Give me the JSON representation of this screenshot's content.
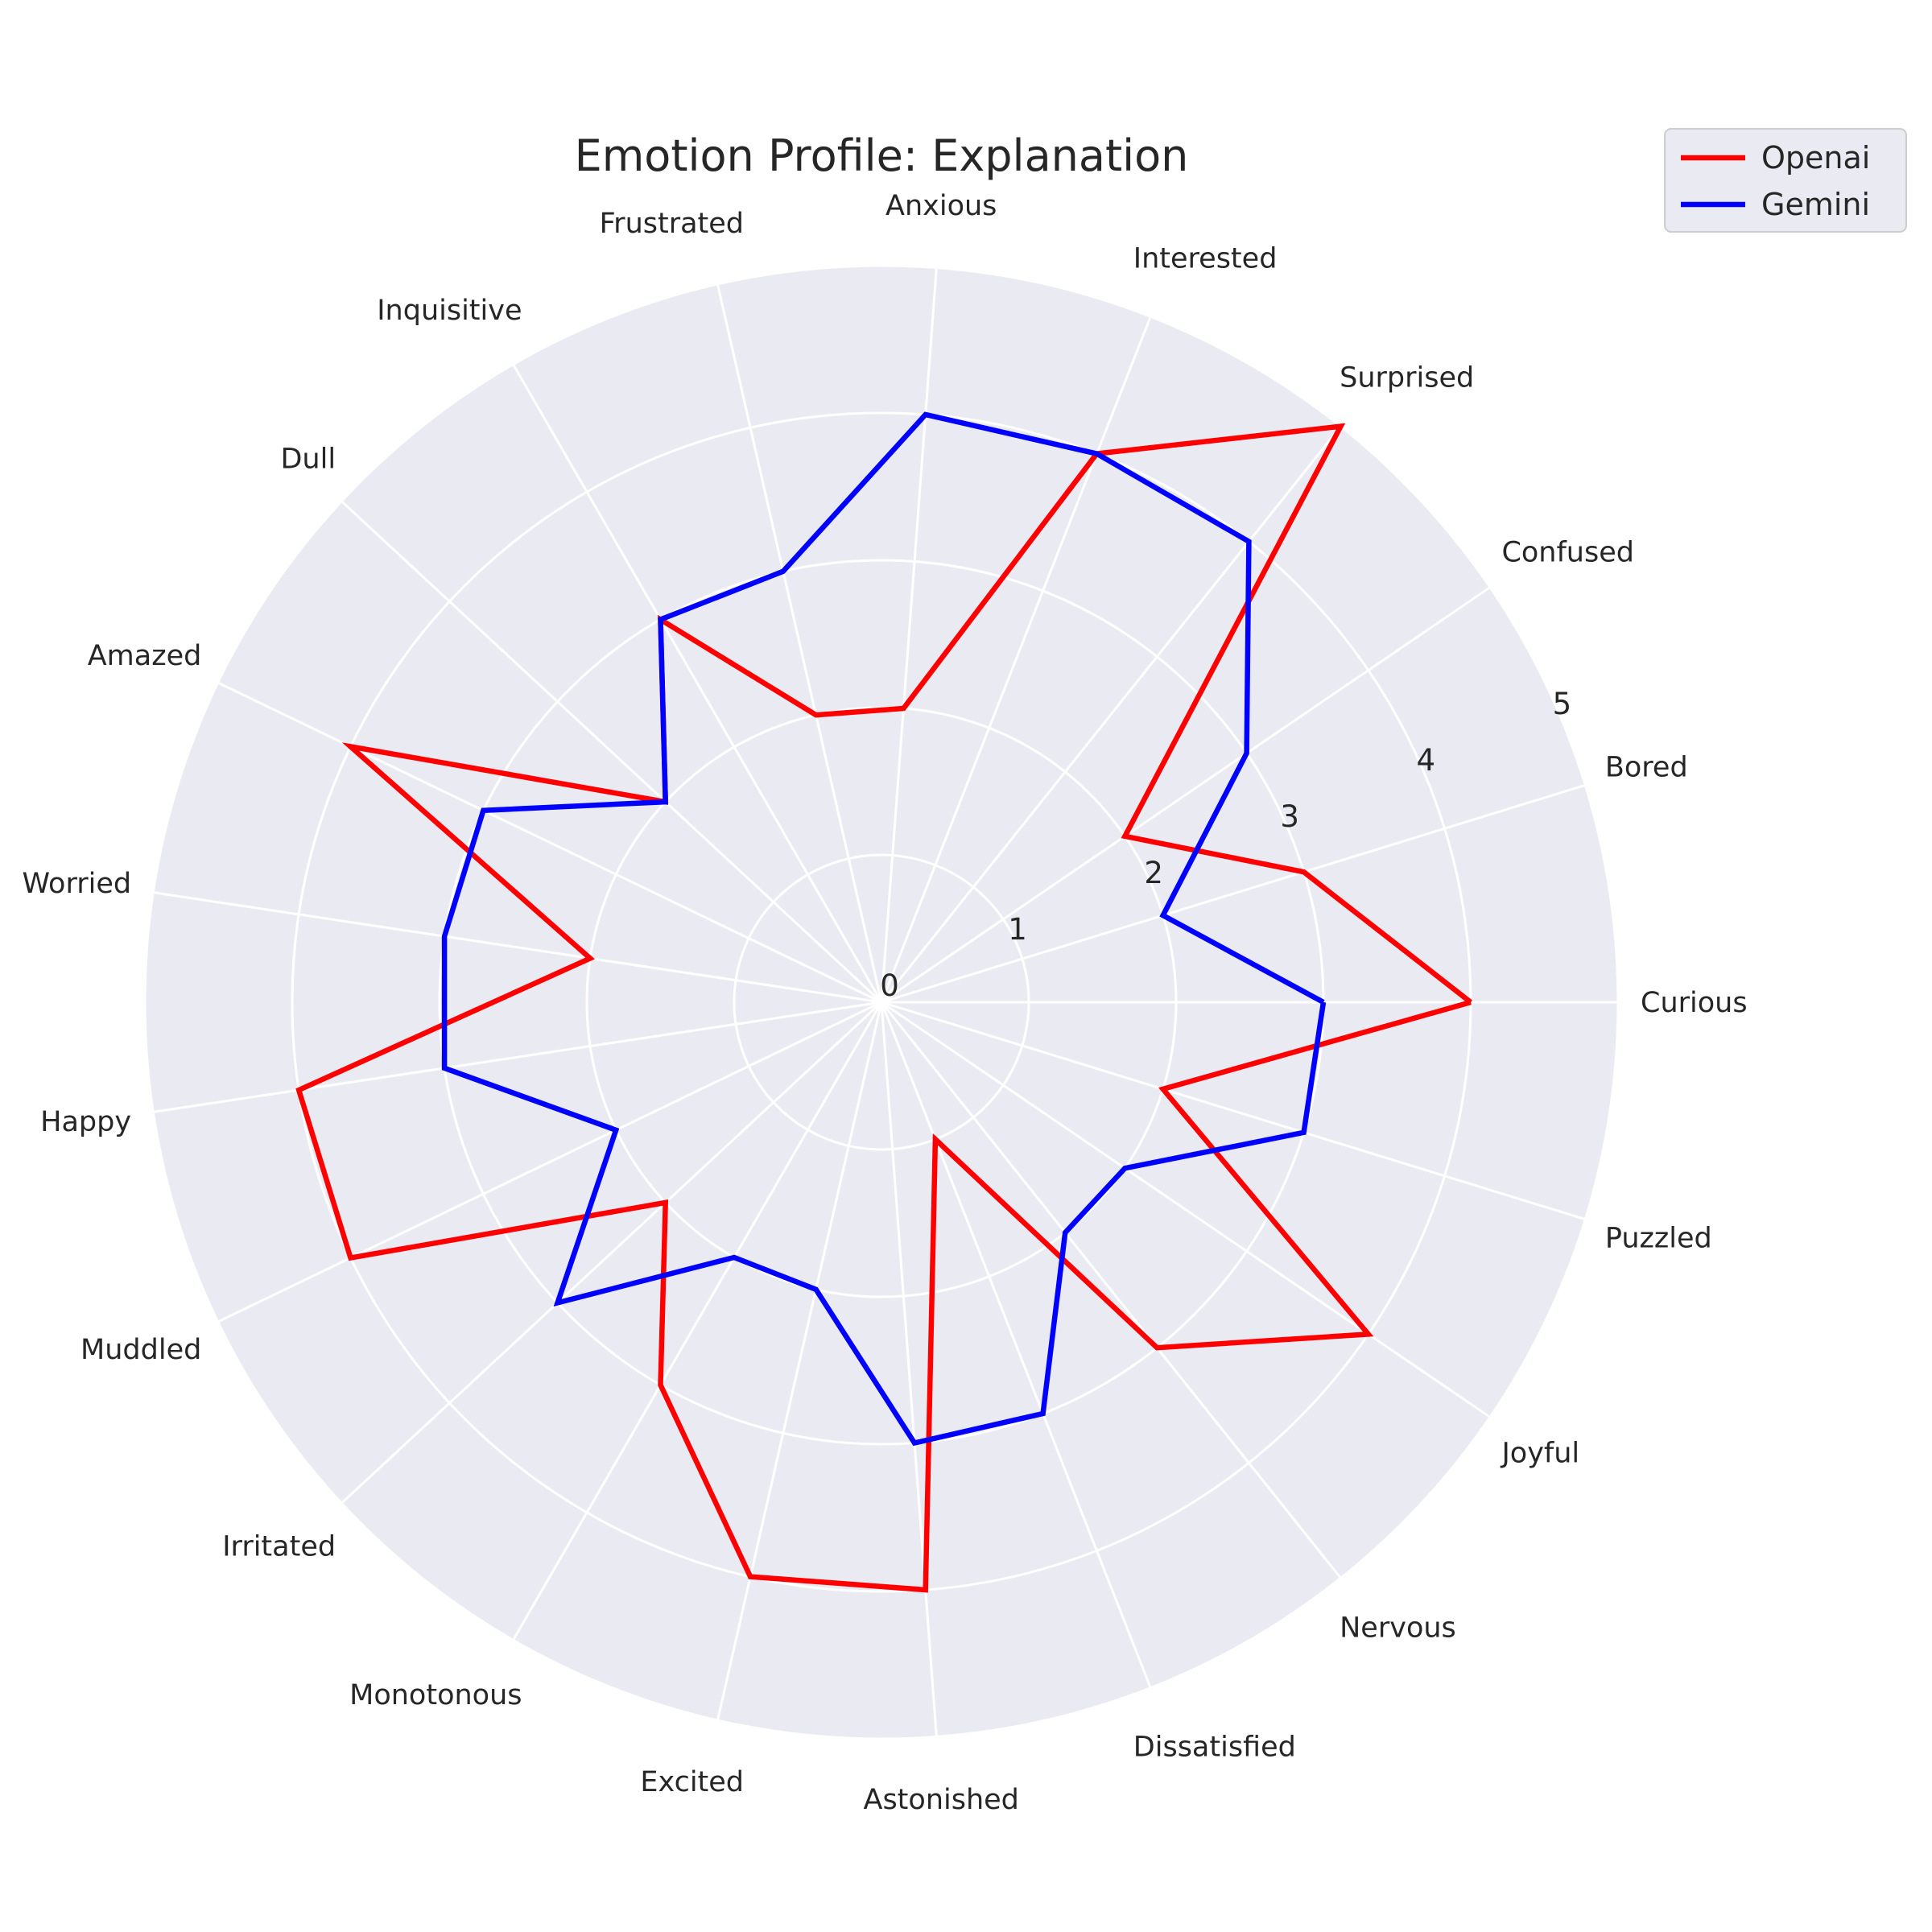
{
  "chart_data": {
    "type": "radar",
    "title": "Emotion Profile: Explanation",
    "categories": [
      "Curious",
      "Bored",
      "Confused",
      "Surprised",
      "Interested",
      "Anxious",
      "Frustrated",
      "Inquisitive",
      "Dull",
      "Amazed",
      "Worried",
      "Happy",
      "Muddled",
      "Irritated",
      "Monotonous",
      "Excited",
      "Astonished",
      "Dissatisfied",
      "Nervous",
      "Joyful",
      "Puzzled"
    ],
    "rlim": [
      0,
      5
    ],
    "rticks": [
      "0",
      "1",
      "2",
      "3",
      "4",
      "5"
    ],
    "series": [
      {
        "name": "Openai",
        "color": "#ff0000",
        "values": [
          4,
          3,
          2,
          5,
          4,
          2,
          2,
          3,
          2,
          4,
          2,
          4,
          4,
          2,
          3,
          4,
          4,
          1,
          3,
          4,
          2
        ]
      },
      {
        "name": "Gemini",
        "color": "#0000ff",
        "values": [
          3,
          2,
          3,
          4,
          4,
          4,
          3,
          3,
          2,
          3,
          3,
          3,
          2,
          3,
          2,
          2,
          3,
          3,
          2,
          2,
          3
        ]
      }
    ],
    "grid": true,
    "background_color": "#eaeaf2",
    "legend_position": "top-right"
  }
}
